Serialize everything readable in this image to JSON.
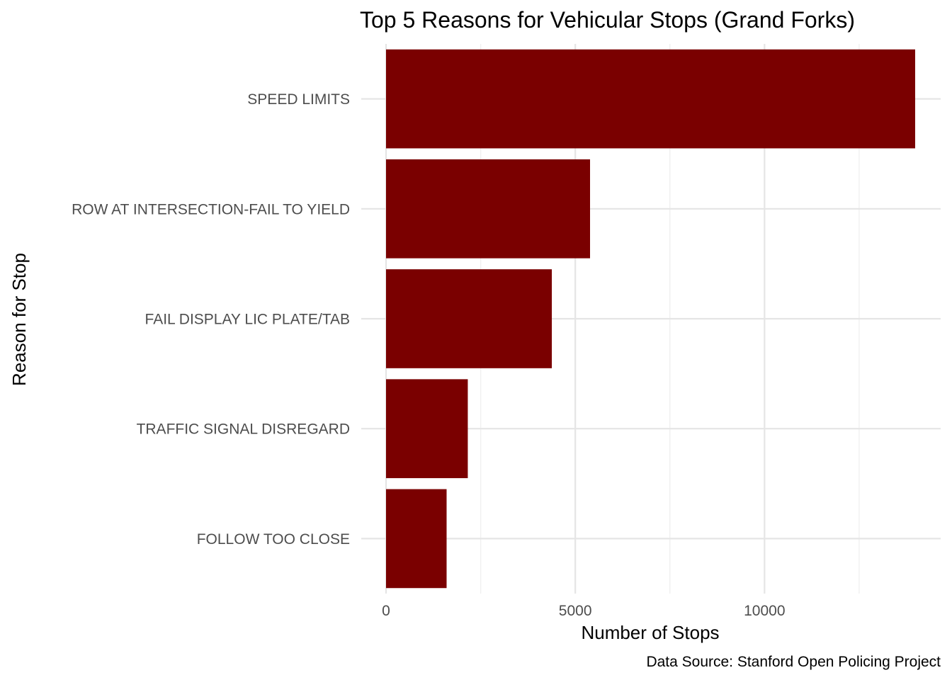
{
  "chart_data": {
    "type": "bar",
    "orientation": "horizontal",
    "title": "Top 5 Reasons for Vehicular Stops (Grand Forks)",
    "xlabel": "Number of Stops",
    "ylabel": "Reason for Stop",
    "caption": "Data Source: Stanford Open Policing Project",
    "categories": [
      "SPEED LIMITS",
      "ROW AT INTERSECTION-FAIL TO YIELD",
      "FAIL DISPLAY LIC PLATE/TAB",
      "TRAFFIC SIGNAL DISREGARD",
      "FOLLOW TOO CLOSE"
    ],
    "values": [
      13980,
      5390,
      4380,
      2160,
      1600
    ],
    "xlim": [
      0,
      14700
    ],
    "x_ticks": [
      0,
      5000,
      10000
    ],
    "x_tick_labels": [
      "0",
      "5000",
      "10000"
    ],
    "bar_color": "#7a0000",
    "grid": true,
    "legend": "none"
  }
}
